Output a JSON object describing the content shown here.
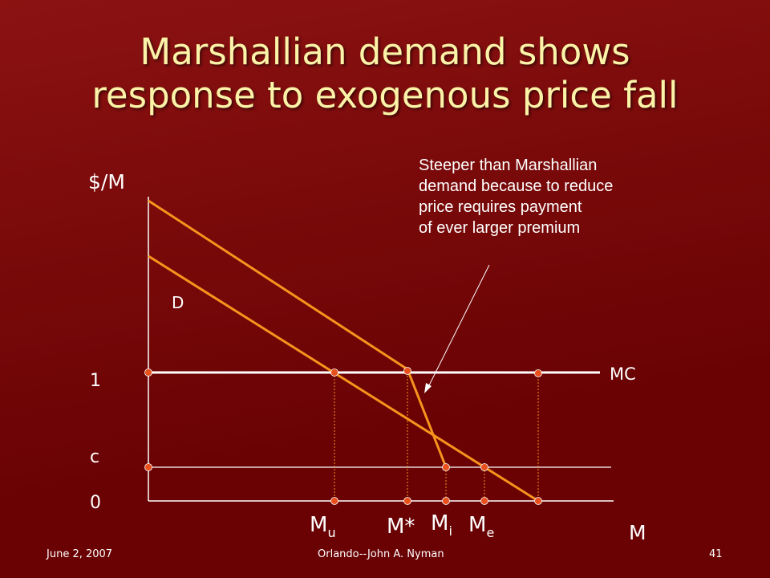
{
  "slide": {
    "title_line1": "Marshallian demand shows",
    "title_line2": "response to exogenous price fall",
    "colors": {
      "background": "#6e0204",
      "title": "#fbf3a8",
      "curve": "#f7941d",
      "axis": "#ffffff",
      "marker": "#e8501c"
    }
  },
  "diagram": {
    "y_axis_label": "$/M",
    "x_axis_label": "M",
    "tick_1": "1",
    "tick_c": "c",
    "tick_0": "0",
    "demand_label": "D",
    "mc_label": "MC",
    "annotation_lines": [
      "Steeper than Marshallian",
      "demand because to reduce",
      "price requires payment",
      "of ever larger premium"
    ],
    "x_markers": {
      "mu_base": "M",
      "mu_sub": "u",
      "mstar": "M*",
      "mi_base": "M",
      "mi_sub": "i",
      "me_base": "M",
      "me_sub": "e"
    }
  },
  "footer": {
    "date": "June 2, 2007",
    "author": "Orlando--John A. Nyman",
    "page": "41"
  }
}
